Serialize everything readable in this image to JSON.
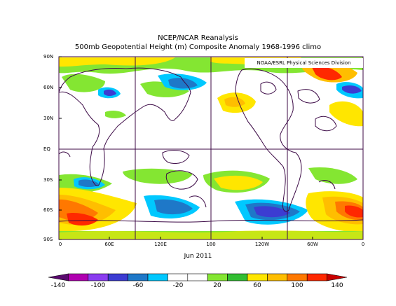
{
  "title": "NCEP/NCAR Reanalysis",
  "subtitle": "500mb Geopotential Height (m) Composite Anomaly 1968-1996 climo",
  "credit": "NOAA/ESRL Physical Sciences Division",
  "date_label": "Jun 2011",
  "lat_labels": [
    "90N",
    "60N",
    "30N",
    "EQ",
    "30S",
    "60S",
    "90S"
  ],
  "lon_labels": [
    "0",
    "60E",
    "120E",
    "180",
    "120W",
    "60W",
    "0"
  ],
  "colorbar": {
    "labels": [
      "-140",
      "-100",
      "-60",
      "-20",
      "20",
      "60",
      "100",
      "140"
    ],
    "colors": [
      "#5a0a6e",
      "#b000b0",
      "#8a3cf0",
      "#3c3cd2",
      "#1e78c8",
      "#00c8ff",
      "#ffffff",
      "#ffffff",
      "#84e632",
      "#32be32",
      "#ffe600",
      "#ffbe00",
      "#ff7800",
      "#ff2800",
      "#c80000"
    ]
  }
}
